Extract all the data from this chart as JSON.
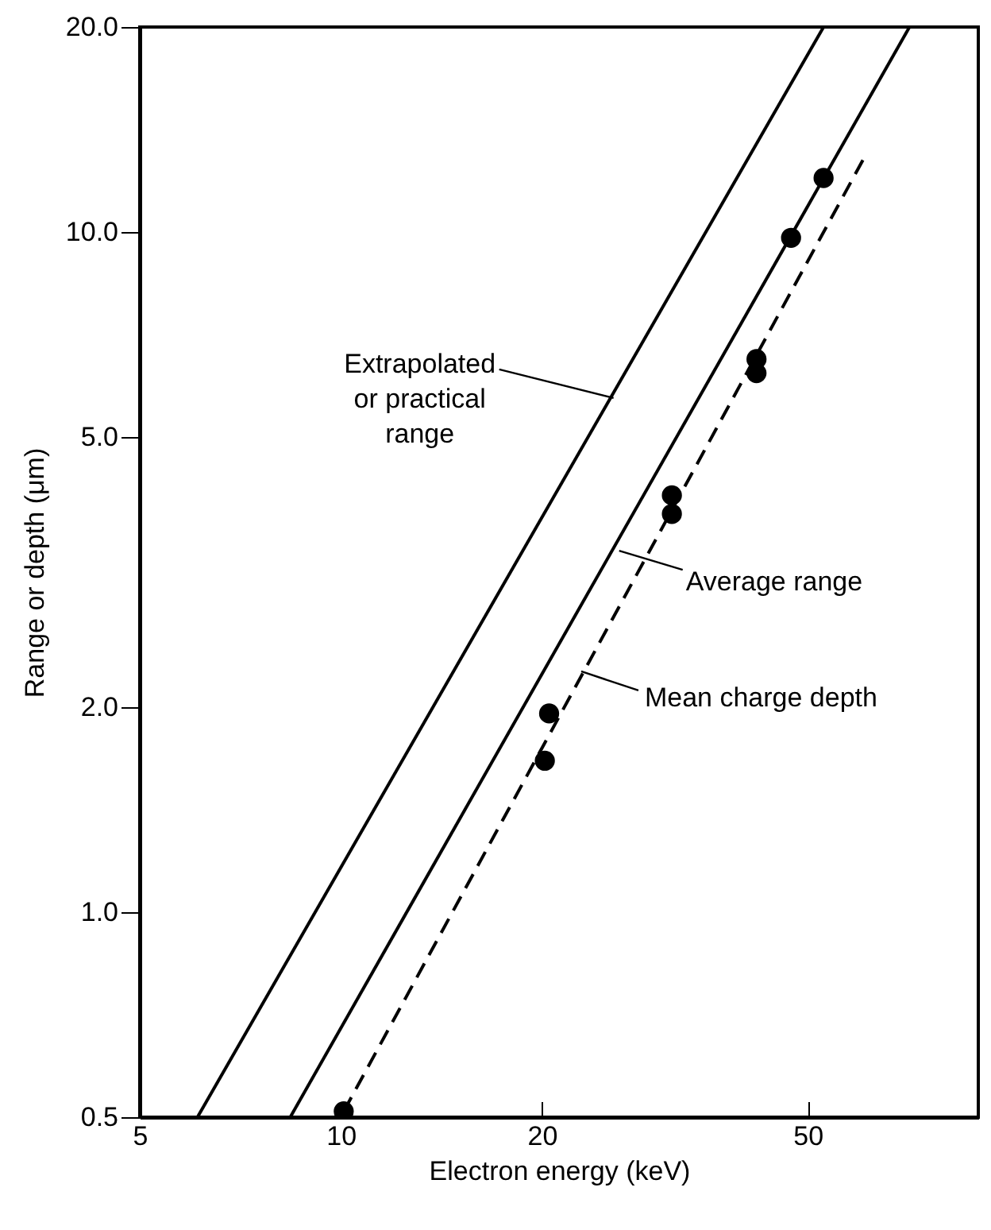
{
  "chart_data": {
    "type": "line",
    "xlabel": "Electron energy (keV)",
    "ylabel": "Range or depth (μm)",
    "log": "xy",
    "grid": false,
    "xlim": [
      5,
      90
    ],
    "xticks": [
      5,
      10,
      20,
      50
    ],
    "ylim": [
      0.5,
      20
    ],
    "yticks": [
      0.5,
      {
        "value": 1,
        "label": "1.0"
      },
      {
        "value": 2,
        "label": "2.0"
      },
      {
        "value": 5,
        "label": "5.0"
      },
      {
        "value": 10,
        "label": "10.0"
      },
      {
        "value": 20,
        "label": "20.0"
      }
    ],
    "series": [
      {
        "color": "#000000",
        "line_style": "solid",
        "x": [
          6.1,
          52.8
        ],
        "values": [
          0.5,
          20
        ]
      },
      {
        "color": "#000000",
        "line_style": "solid",
        "x": [
          8.4,
          71
        ],
        "values": [
          0.5,
          20
        ]
      },
      {
        "color": "#000000",
        "line_style": "dashed",
        "x": [
          10.1,
          60.6
        ],
        "values": [
          0.51,
          12.8
        ]
      },
      {
        "type": "scatter",
        "color": "#000000",
        "marker": "circle",
        "x": [
          10.1,
          20.2,
          20.5,
          31.3,
          31.3,
          41.9,
          41.9,
          47.2,
          52.8
        ],
        "values": [
          0.51,
          1.67,
          1.96,
          3.85,
          4.1,
          6.2,
          6.5,
          9.8,
          12
        ]
      }
    ],
    "annotations": [
      {
        "text": "Extrapolated\nor practical\nrange",
        "x": 25.6,
        "y": 5.7
      },
      {
        "text": "Average range",
        "x": 26.1,
        "y": 3.4
      },
      {
        "text": "Mean charge depth",
        "x": 22.9,
        "y": 2.26
      }
    ]
  }
}
